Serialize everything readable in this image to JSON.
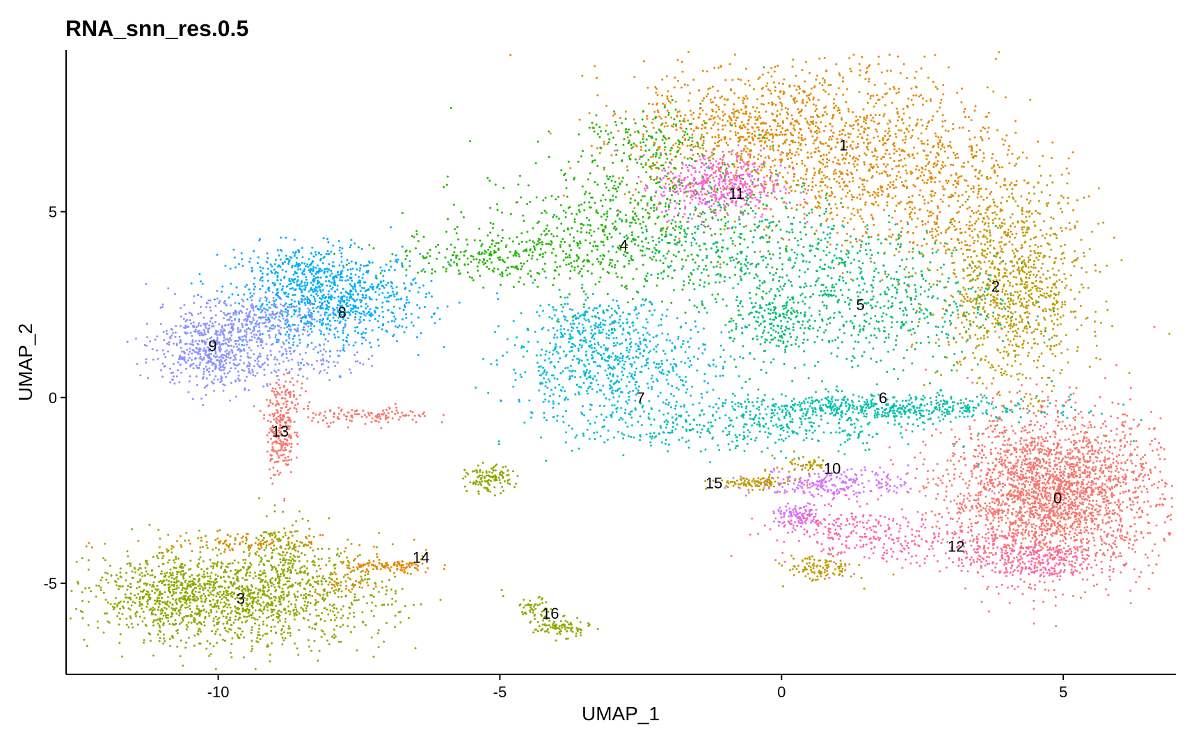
{
  "chart_data": {
    "type": "scatter",
    "title": "RNA_snn_res.0.5",
    "xlabel": "UMAP_1",
    "ylabel": "UMAP_2",
    "xlim": [
      -12.7,
      7.0
    ],
    "ylim": [
      -7.45,
      9.35
    ],
    "xticks": [
      -10,
      -5,
      0,
      5
    ],
    "yticks": [
      -5,
      0,
      5
    ],
    "grid": false,
    "legend": "none",
    "clusters": [
      {
        "name": "0",
        "label_x": 4.9,
        "label_y": -2.7,
        "color": "#F8766D",
        "blobs": [
          {
            "cx": 4.8,
            "cy": -2.6,
            "sx": 0.95,
            "sy": 1.05,
            "n": 2600
          }
        ]
      },
      {
        "name": "1",
        "label_x": 1.1,
        "label_y": 6.8,
        "color": "#E18A00",
        "blobs": [
          {
            "cx": 0.6,
            "cy": 6.9,
            "sx": 1.6,
            "sy": 1.1,
            "n": 1300
          },
          {
            "cx": 2.6,
            "cy": 5.3,
            "sx": 1.0,
            "sy": 1.0,
            "n": 450
          },
          {
            "cx": -0.8,
            "cy": 7.3,
            "sx": 0.9,
            "sy": 0.6,
            "n": 250
          }
        ]
      },
      {
        "name": "2",
        "label_x": 3.8,
        "label_y": 3.0,
        "color": "#BE9C00",
        "blobs": [
          {
            "cx": 4.1,
            "cy": 2.9,
            "sx": 0.65,
            "sy": 1.3,
            "n": 1000
          }
        ]
      },
      {
        "name": "3",
        "label_x": -9.6,
        "label_y": -5.4,
        "color": "#8CAB00",
        "blobs": [
          {
            "cx": -9.6,
            "cy": -5.4,
            "sx": 1.3,
            "sy": 0.65,
            "n": 1400
          },
          {
            "cx": -11.0,
            "cy": -5.2,
            "sx": 0.55,
            "sy": 0.45,
            "n": 250
          },
          {
            "cx": -8.8,
            "cy": -4.2,
            "sx": 0.3,
            "sy": 0.5,
            "n": 150
          }
        ]
      },
      {
        "name": "4",
        "label_x": -2.8,
        "label_y": 4.1,
        "color": "#24B700",
        "blobs": [
          {
            "cx": -2.8,
            "cy": 4.6,
            "sx": 1.3,
            "sy": 1.0,
            "n": 650
          },
          {
            "cx": -5.0,
            "cy": 3.8,
            "sx": 1.0,
            "sy": 0.35,
            "n": 250
          },
          {
            "cx": -2.3,
            "cy": 6.8,
            "sx": 0.6,
            "sy": 0.5,
            "n": 150
          }
        ]
      },
      {
        "name": "5",
        "label_x": 1.4,
        "label_y": 2.5,
        "color": "#00BE70",
        "blobs": [
          {
            "cx": 1.4,
            "cy": 2.6,
            "sx": 1.2,
            "sy": 1.0,
            "n": 650
          },
          {
            "cx": -0.2,
            "cy": 2.0,
            "sx": 0.35,
            "sy": 0.45,
            "n": 150
          },
          {
            "cx": -0.8,
            "cy": 4.2,
            "sx": 1.1,
            "sy": 0.8,
            "n": 350
          }
        ]
      },
      {
        "name": "6",
        "label_x": 1.8,
        "label_y": 0.0,
        "color": "#00C1AB",
        "blobs": [
          {
            "cx": 1.6,
            "cy": -0.3,
            "sx": 1.5,
            "sy": 0.18,
            "n": 600
          },
          {
            "cx": -0.6,
            "cy": -0.9,
            "sx": 1.6,
            "sy": 0.3,
            "n": 300
          }
        ]
      },
      {
        "name": "7",
        "label_x": -2.5,
        "label_y": 0.0,
        "color": "#00BBDA",
        "blobs": [
          {
            "cx": -3.0,
            "cy": 0.8,
            "sx": 0.95,
            "sy": 0.8,
            "n": 700
          },
          {
            "cx": -3.3,
            "cy": 2.0,
            "sx": 0.55,
            "sy": 0.35,
            "n": 150
          }
        ]
      },
      {
        "name": "8",
        "label_x": -7.8,
        "label_y": 2.3,
        "color": "#00ACFC",
        "blobs": [
          {
            "cx": -7.9,
            "cy": 2.6,
            "sx": 0.8,
            "sy": 0.6,
            "n": 800
          },
          {
            "cx": -8.6,
            "cy": 3.4,
            "sx": 0.6,
            "sy": 0.35,
            "n": 200
          }
        ]
      },
      {
        "name": "9",
        "label_x": -10.1,
        "label_y": 1.4,
        "color": "#8B93FF",
        "blobs": [
          {
            "cx": -10.1,
            "cy": 1.3,
            "sx": 0.5,
            "sy": 0.55,
            "n": 550
          },
          {
            "cx": -9.3,
            "cy": 2.1,
            "sx": 0.7,
            "sy": 0.3,
            "n": 250
          },
          {
            "cx": -8.6,
            "cy": 1.0,
            "sx": 0.6,
            "sy": 0.25,
            "n": 120
          }
        ]
      },
      {
        "name": "10",
        "label_x": 0.9,
        "label_y": -1.9,
        "color": "#D575FE",
        "blobs": [
          {
            "cx": 0.9,
            "cy": -2.3,
            "sx": 0.7,
            "sy": 0.2,
            "n": 250
          },
          {
            "cx": 0.3,
            "cy": -3.2,
            "sx": 0.2,
            "sy": 0.15,
            "n": 100
          }
        ]
      },
      {
        "name": "11",
        "label_x": -0.8,
        "label_y": 5.5,
        "color": "#F962DD",
        "blobs": [
          {
            "cx": -1.1,
            "cy": 5.7,
            "sx": 0.55,
            "sy": 0.45,
            "n": 450
          }
        ]
      },
      {
        "name": "12",
        "label_x": 3.1,
        "label_y": -4.0,
        "color": "#FF65AC",
        "blobs": [
          {
            "cx": 1.9,
            "cy": -3.8,
            "sx": 1.0,
            "sy": 0.35,
            "n": 250
          },
          {
            "cx": 4.4,
            "cy": -4.4,
            "sx": 0.6,
            "sy": 0.3,
            "n": 250
          },
          {
            "cx": 0.8,
            "cy": -3.3,
            "sx": 0.5,
            "sy": 0.3,
            "n": 100
          }
        ]
      },
      {
        "name": "13",
        "label_x": -8.9,
        "label_y": -0.9,
        "color": "#F8766D",
        "blobs": [
          {
            "cx": -8.9,
            "cy": -0.9,
            "sx": 0.12,
            "sy": 0.6,
            "n": 220
          },
          {
            "cx": -7.3,
            "cy": -0.5,
            "sx": 0.55,
            "sy": 0.12,
            "n": 120
          },
          {
            "cx": -8.7,
            "cy": 0.0,
            "sx": 0.2,
            "sy": 0.25,
            "n": 50
          }
        ]
      },
      {
        "name": "14",
        "label_x": -6.4,
        "label_y": -4.3,
        "color": "#E18A00",
        "blobs": [
          {
            "cx": -7.0,
            "cy": -4.55,
            "sx": 0.45,
            "sy": 0.1,
            "n": 110
          },
          {
            "cx": -9.5,
            "cy": -3.9,
            "sx": 1.0,
            "sy": 0.12,
            "n": 110
          },
          {
            "cx": -7.7,
            "cy": -5.0,
            "sx": 0.3,
            "sy": 0.2,
            "n": 40
          }
        ]
      },
      {
        "name": "15",
        "label_x": -1.2,
        "label_y": -2.3,
        "color": "#BE9C00",
        "blobs": [
          {
            "cx": -0.5,
            "cy": -2.3,
            "sx": 0.35,
            "sy": 0.08,
            "n": 100
          },
          {
            "cx": 0.7,
            "cy": -4.6,
            "sx": 0.3,
            "sy": 0.18,
            "n": 110
          },
          {
            "cx": 0.4,
            "cy": -1.8,
            "sx": 0.25,
            "sy": 0.15,
            "n": 50
          }
        ]
      },
      {
        "name": "16",
        "label_x": -4.1,
        "label_y": -5.8,
        "color": "#8CAB00",
        "blobs": [
          {
            "cx": -3.9,
            "cy": -6.2,
            "sx": 0.25,
            "sy": 0.12,
            "n": 90
          },
          {
            "cx": -5.2,
            "cy": -2.2,
            "sx": 0.2,
            "sy": 0.18,
            "n": 120
          },
          {
            "cx": -4.4,
            "cy": -5.7,
            "sx": 0.15,
            "sy": 0.15,
            "n": 50
          }
        ]
      }
    ]
  }
}
